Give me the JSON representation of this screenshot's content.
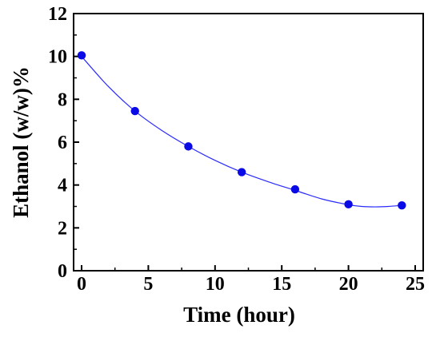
{
  "chart_data": {
    "type": "scatter",
    "title": "",
    "xlabel": "Time (hour)",
    "ylabel": "Ethanol (w/w)%",
    "xlim": [
      -0.6,
      25.6
    ],
    "ylim": [
      0,
      12
    ],
    "xticks": [
      0,
      5,
      10,
      15,
      20,
      25
    ],
    "yticks": [
      0,
      2,
      4,
      6,
      8,
      10,
      12
    ],
    "xtick_labels": [
      "0",
      "5",
      "10",
      "15",
      "20",
      "25"
    ],
    "ytick_labels": [
      "0",
      "2",
      "4",
      "6",
      "8",
      "10",
      "12"
    ],
    "series": [
      {
        "type": "scatter",
        "x": [
          0,
          4,
          8,
          12,
          16,
          20,
          24
        ],
        "y": [
          10.05,
          7.45,
          5.8,
          4.6,
          3.8,
          3.1,
          3.05
        ],
        "color": "#0a0ae6"
      },
      {
        "type": "fit-line",
        "x": [
          0,
          2,
          4,
          6,
          8,
          10,
          12,
          14,
          16,
          18,
          20,
          21,
          22,
          23,
          24
        ],
        "y": [
          10.0,
          8.6,
          7.45,
          6.55,
          5.8,
          5.15,
          4.6,
          4.15,
          3.75,
          3.35,
          3.08,
          3.0,
          2.98,
          3.0,
          3.05
        ],
        "color": "#2b2bff"
      }
    ],
    "grid": false,
    "legend": "none"
  }
}
